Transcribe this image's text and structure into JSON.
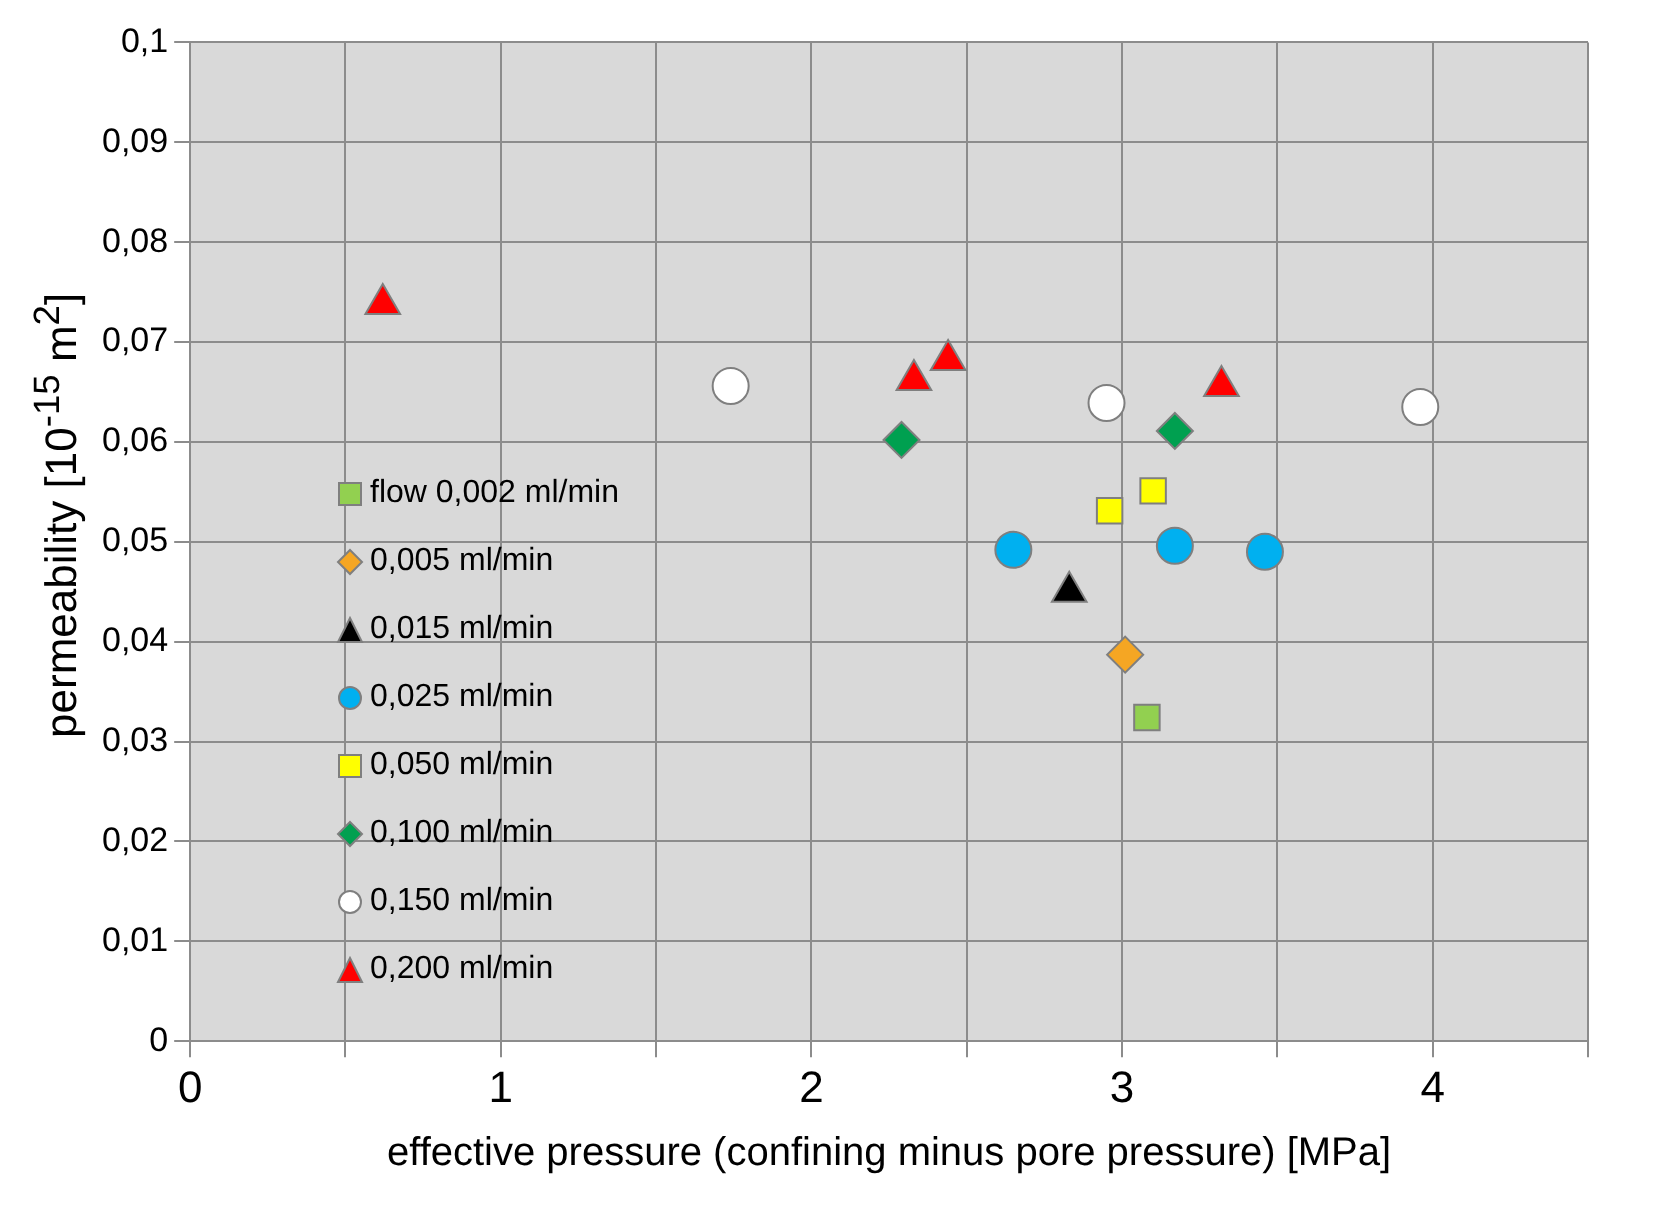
{
  "chart_data": {
    "type": "scatter",
    "xlabel": "effective pressure (confining minus pore pressure) [MPa]",
    "ylabel": "permeability [10$^{-15}$ m$^{2}$]",
    "xlim": [
      0,
      4.5
    ],
    "xticks": [
      0,
      {
        "value": 0.5,
        "label": null
      },
      1,
      {
        "value": 1.5,
        "label": null
      },
      2,
      {
        "value": 2.5,
        "label": null
      },
      3,
      {
        "value": 3.5,
        "label": null
      },
      4,
      {
        "value": 4.5,
        "label": null
      }
    ],
    "ylim": [
      0,
      0.1
    ],
    "yticks": [
      0,
      {
        "value": 0.01,
        "label": "0,01"
      },
      {
        "value": 0.02,
        "label": "0,02"
      },
      {
        "value": 0.03,
        "label": "0,03"
      },
      {
        "value": 0.04,
        "label": "0,04"
      },
      {
        "value": 0.05,
        "label": "0,05"
      },
      {
        "value": 0.06,
        "label": "0,06"
      },
      {
        "value": 0.07,
        "label": "0,07"
      },
      {
        "value": 0.08,
        "label": "0,08"
      },
      {
        "value": 0.09,
        "label": "0,09"
      },
      {
        "value": 0.1,
        "label": "0,1"
      }
    ],
    "grid": true,
    "legend": "left",
    "series": [
      {
        "name": "flow 0,002 ml/min",
        "color": "#92d050",
        "marker": "square",
        "x": [
          3.08
        ],
        "values": [
          0.0324
        ]
      },
      {
        "name": "0,005 ml/min",
        "color": "#f5a623",
        "marker": "diamond",
        "x": [
          3.01
        ],
        "values": [
          0.0387
        ]
      },
      {
        "name": "0,015 ml/min",
        "color": "#000000",
        "marker": "triangle",
        "x": [
          2.83
        ],
        "values": [
          0.045
        ]
      },
      {
        "name": "0,025 ml/min",
        "color": "#00b0f0",
        "marker": "circle",
        "x": [
          2.65,
          3.17,
          3.46
        ],
        "values": [
          0.0492,
          0.0496,
          0.049
        ]
      },
      {
        "name": "0,050 ml/min",
        "color": "#ffff00",
        "marker": "square",
        "x": [
          2.96,
          3.1
        ],
        "values": [
          0.0531,
          0.0551
        ]
      },
      {
        "name": "0,100 ml/min",
        "color": "#00a050",
        "marker": "diamond",
        "x": [
          2.29,
          3.17
        ],
        "values": [
          0.0602,
          0.0611
        ]
      },
      {
        "name": "0,150 ml/min",
        "color": "#ffffff",
        "marker": "circle",
        "x": [
          1.74,
          2.95,
          3.96
        ],
        "values": [
          0.0656,
          0.0639,
          0.0635
        ]
      },
      {
        "name": "0,200 ml/min",
        "color": "#ff0000",
        "marker": "triangle",
        "x": [
          0.62,
          2.33,
          2.44,
          3.32
        ],
        "values": [
          0.0738,
          0.0662,
          0.0682,
          0.0656
        ]
      }
    ]
  }
}
